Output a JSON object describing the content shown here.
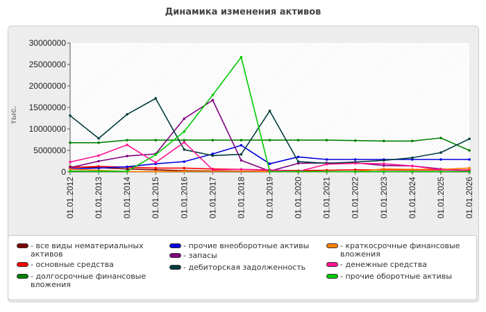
{
  "page": {
    "title": "Динамика изменения активов"
  },
  "chart_data": {
    "type": "line",
    "title": "Динамика изменения активов",
    "ylabel": "тыс.",
    "xlabel": "",
    "ylim": [
      0,
      30000000
    ],
    "yticks": [
      "0",
      "5000000",
      "10000000",
      "15000000",
      "20000000",
      "25000000",
      "30000000"
    ],
    "grid": false,
    "legend_position": "bottom",
    "categories": [
      "01.01.2012",
      "01.01.2013",
      "01.01.2014",
      "01.01.2015",
      "01.01.2016",
      "01.01.2017",
      "01.01.2018",
      "01.01.2019",
      "01.01.2020",
      "01.01.2021",
      "01.01.2022",
      "01.01.2023",
      "01.01.2024",
      "01.01.2025",
      "01.01.2026"
    ],
    "series": [
      {
        "name": "- все виды нематериальных активов",
        "color": "#7a0000",
        "values": [
          1200000,
          1000000,
          700000,
          500000,
          300000,
          250000,
          200000,
          150000,
          120000,
          100000,
          90000,
          80000,
          70000,
          60000,
          50000
        ]
      },
      {
        "name": "- основные средства",
        "color": "#ff0000",
        "values": [
          1000000,
          1300000,
          1100000,
          900000,
          900000,
          700000,
          600000,
          400000,
          300000,
          400000,
          500000,
          500000,
          450000,
          450000,
          450000
        ]
      },
      {
        "name": "- долгосрочные финансовые вложения",
        "color": "#008000",
        "values": [
          6800000,
          6800000,
          7400000,
          7400000,
          7400000,
          7400000,
          7400000,
          7400000,
          7400000,
          7400000,
          7300000,
          7200000,
          7200000,
          7900000,
          5000000
        ]
      },
      {
        "name": "- прочие внеоборотные активы",
        "color": "#0000e0",
        "values": [
          700000,
          900000,
          1200000,
          1900000,
          2400000,
          4200000,
          6200000,
          1900000,
          3500000,
          2900000,
          2900000,
          2900000,
          2900000,
          2900000,
          2900000
        ]
      },
      {
        "name": "- запасы",
        "color": "#800080",
        "values": [
          1000000,
          2500000,
          3700000,
          4200000,
          12400000,
          16700000,
          2700000,
          200000,
          2000000,
          2100000,
          2100000,
          1500000,
          1400000,
          700000,
          300000
        ]
      },
      {
        "name": "- дебиторская задолженность",
        "color": "#003c3c",
        "values": [
          13100000,
          7800000,
          13400000,
          17100000,
          5200000,
          3800000,
          4100000,
          14200000,
          2400000,
          2000000,
          2300000,
          2700000,
          3300000,
          4500000,
          7700000
        ]
      },
      {
        "name": "- краткосрочные финансовые вложения",
        "color": "#ff8000",
        "values": [
          600000,
          400000,
          100000,
          100000,
          200000,
          200000,
          200000,
          100000,
          100000,
          100000,
          100000,
          700000,
          600000,
          600000,
          900000
        ]
      },
      {
        "name": "- денежные средства",
        "color": "#ff1493",
        "values": [
          2300000,
          3800000,
          6300000,
          2200000,
          6900000,
          500000,
          600000,
          500000,
          100000,
          1800000,
          2000000,
          1900000,
          1400000,
          500000,
          300000
        ]
      },
      {
        "name": "- прочие оборотные активы",
        "color": "#00c800",
        "values": [
          200000,
          150000,
          150000,
          4000000,
          9400000,
          17900000,
          26700000,
          100000,
          100000,
          100000,
          100000,
          100000,
          100000,
          100000,
          100000
        ]
      }
    ]
  }
}
